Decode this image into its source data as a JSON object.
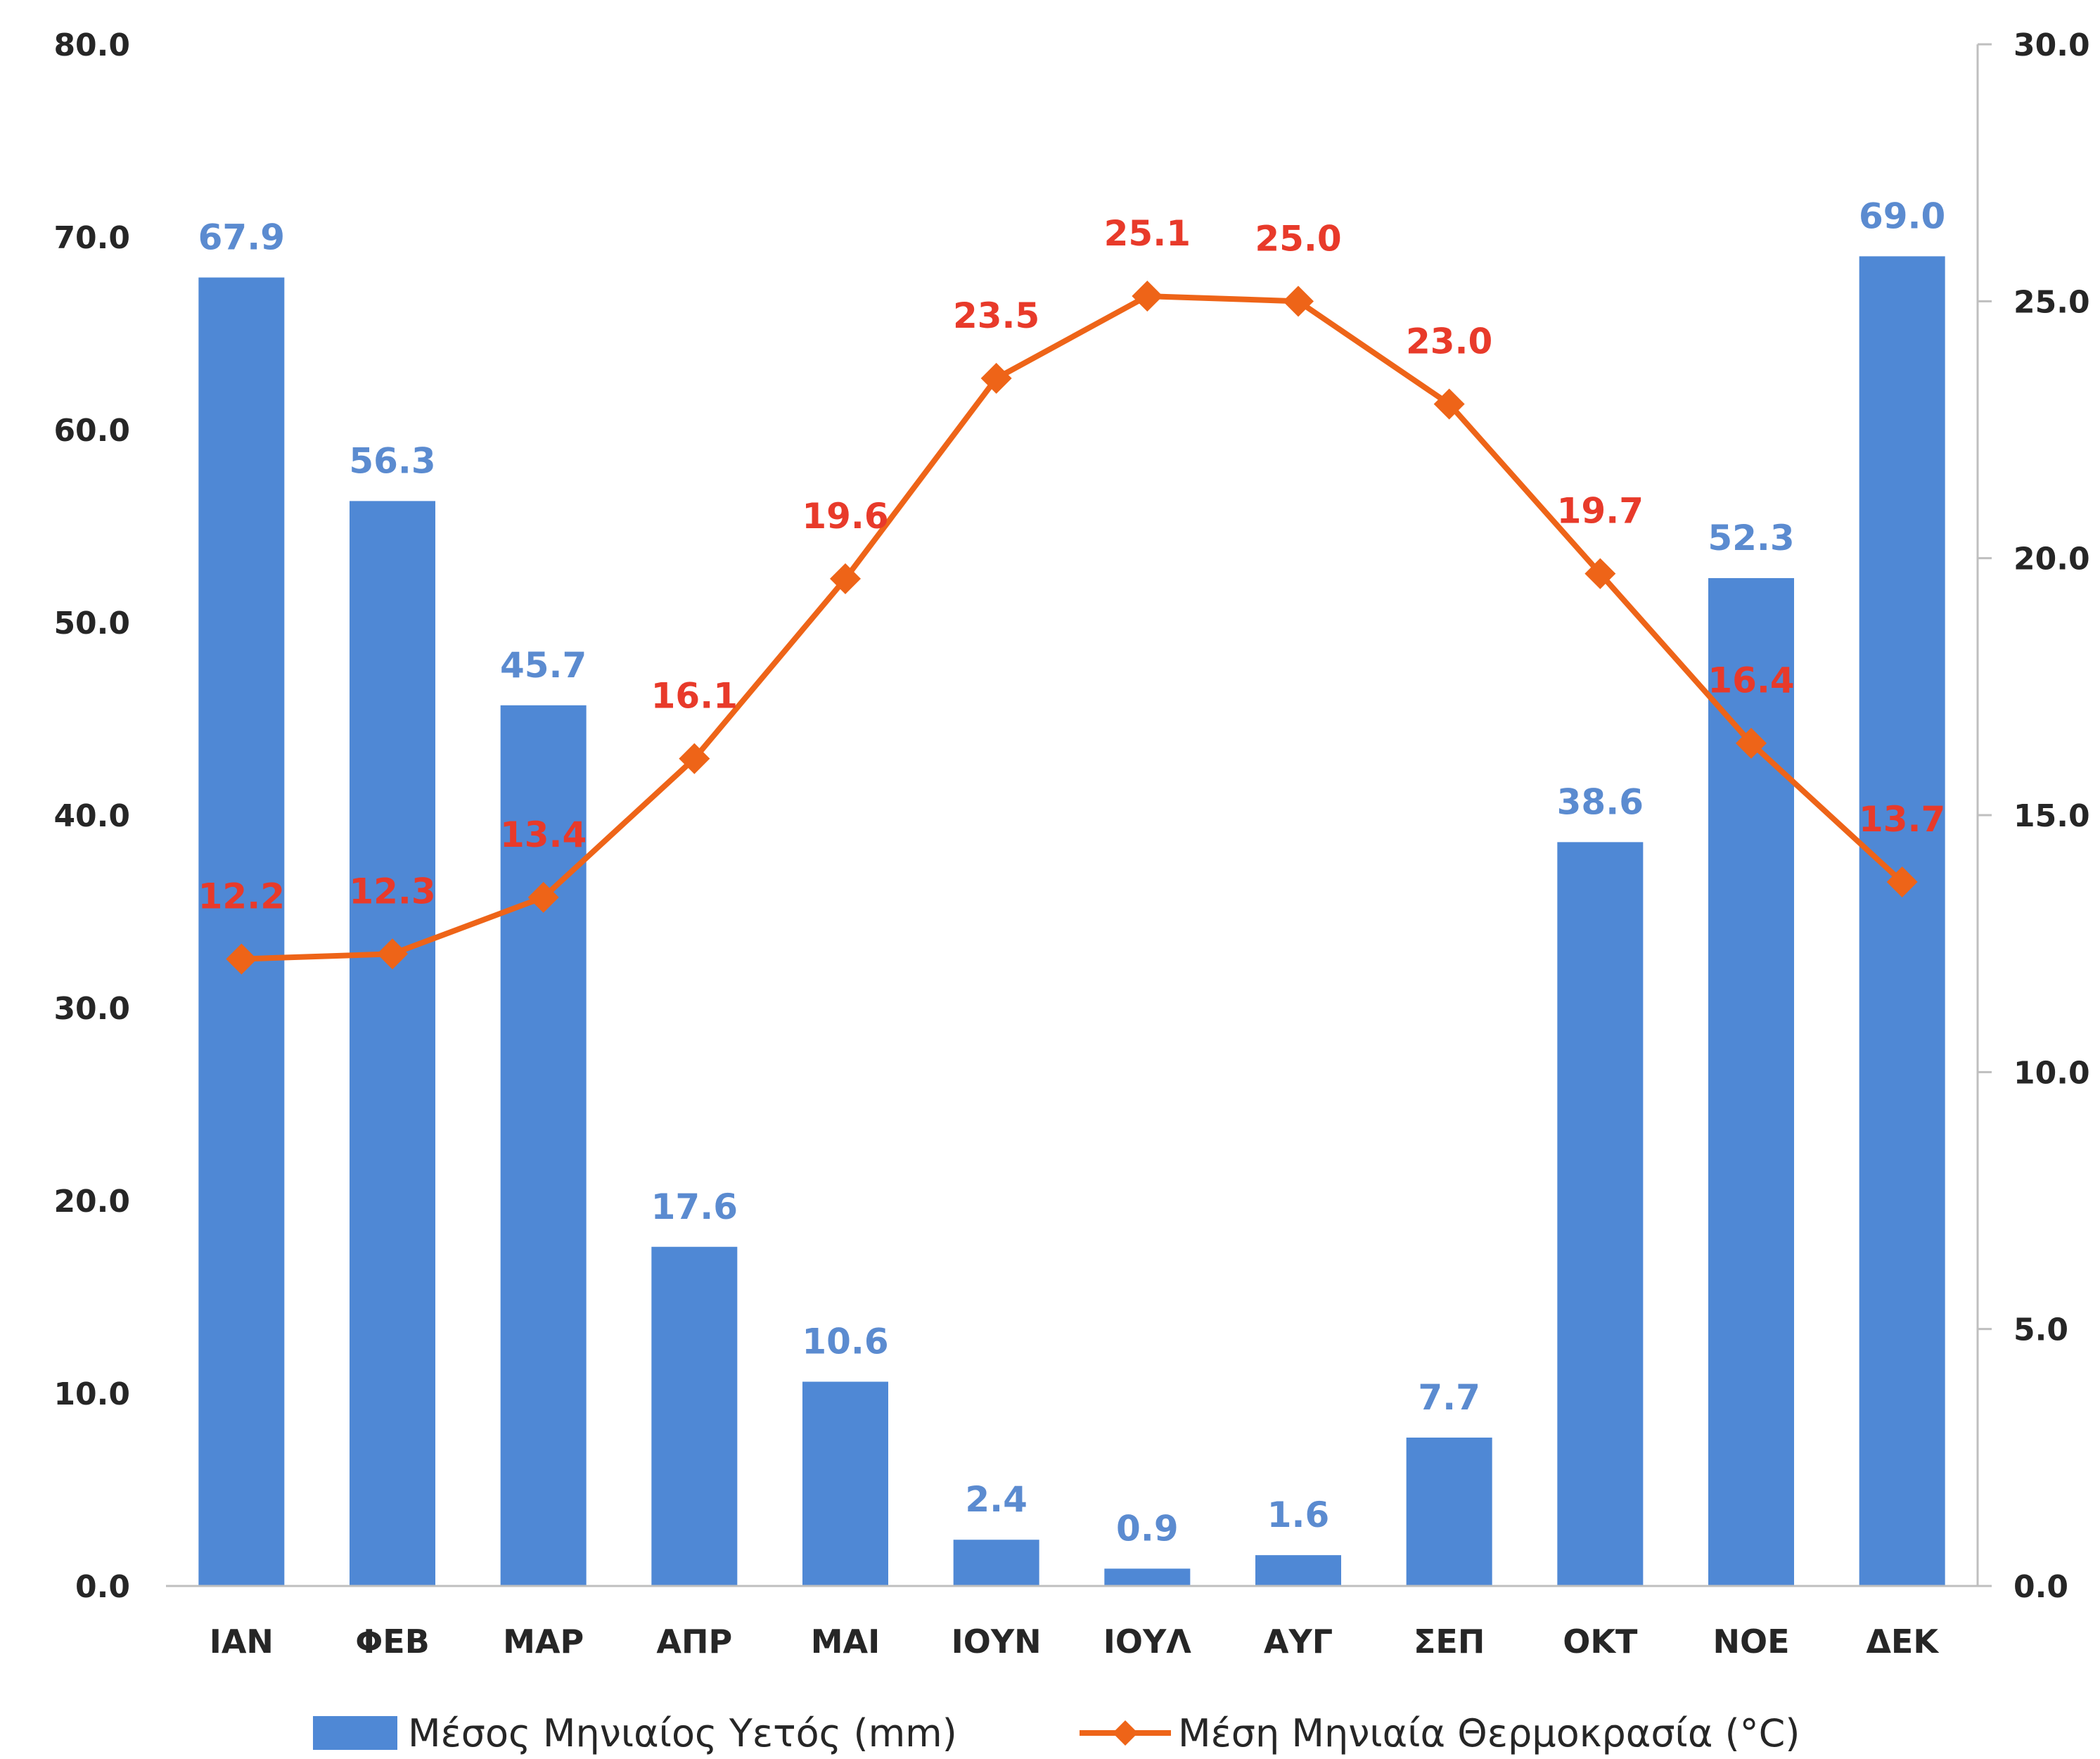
{
  "chart_data": {
    "type": "bar+line",
    "categories": [
      "ΙΑΝ",
      "ΦΕΒ",
      "ΜΑΡ",
      "ΑΠΡ",
      "ΜΑΙ",
      "ΙΟΥΝ",
      "ΙΟΥΛ",
      "ΑΥΓ",
      "ΣΕΠ",
      "ΟΚΤ",
      "ΝΟΕ",
      "ΔΕΚ"
    ],
    "series": [
      {
        "name": "Μέσος Μηνιαίος Υετός (mm)",
        "type": "bar",
        "axis": "left",
        "color": "#4f88d5",
        "label_color": "#5b8bd0",
        "values": [
          67.9,
          56.3,
          45.7,
          17.6,
          10.6,
          2.4,
          0.9,
          1.6,
          7.7,
          38.6,
          52.3,
          69.0
        ],
        "labels": [
          "67.9",
          "56.3",
          "45.7",
          "17.6",
          "10.6",
          "2.4",
          "0.9",
          "1.6",
          "7.7",
          "38.6",
          "52.3",
          "69.0"
        ]
      },
      {
        "name": "Μέση Μηνιαία Θερμοκρασία (°C)",
        "type": "line",
        "axis": "right",
        "color": "#ee6418",
        "label_color": "#e83a2a",
        "values": [
          12.2,
          12.3,
          13.4,
          16.1,
          19.6,
          23.5,
          25.1,
          25.0,
          23.0,
          19.7,
          16.4,
          13.7
        ],
        "labels": [
          "12.2",
          "12.3",
          "13.4",
          "16.1",
          "19.6",
          "23.5",
          "25.1",
          "25.0",
          "23.0",
          "19.7",
          "16.4",
          "13.7"
        ]
      }
    ],
    "y_left": {
      "min": 0,
      "max": 80,
      "ticks": [
        0,
        10,
        20,
        30,
        40,
        50,
        60,
        70,
        80
      ],
      "tick_labels": [
        "0.0",
        "10.0",
        "20.0",
        "30.0",
        "40.0",
        "50.0",
        "60.0",
        "70.0",
        "80.0"
      ]
    },
    "y_right": {
      "min": 0,
      "max": 30,
      "ticks": [
        0,
        5,
        10,
        15,
        20,
        25,
        30
      ],
      "tick_labels": [
        "0.0",
        "5.0",
        "10.0",
        "15.0",
        "20.0",
        "25.0",
        "30.0"
      ]
    },
    "grid": false,
    "legend": "bottom"
  }
}
